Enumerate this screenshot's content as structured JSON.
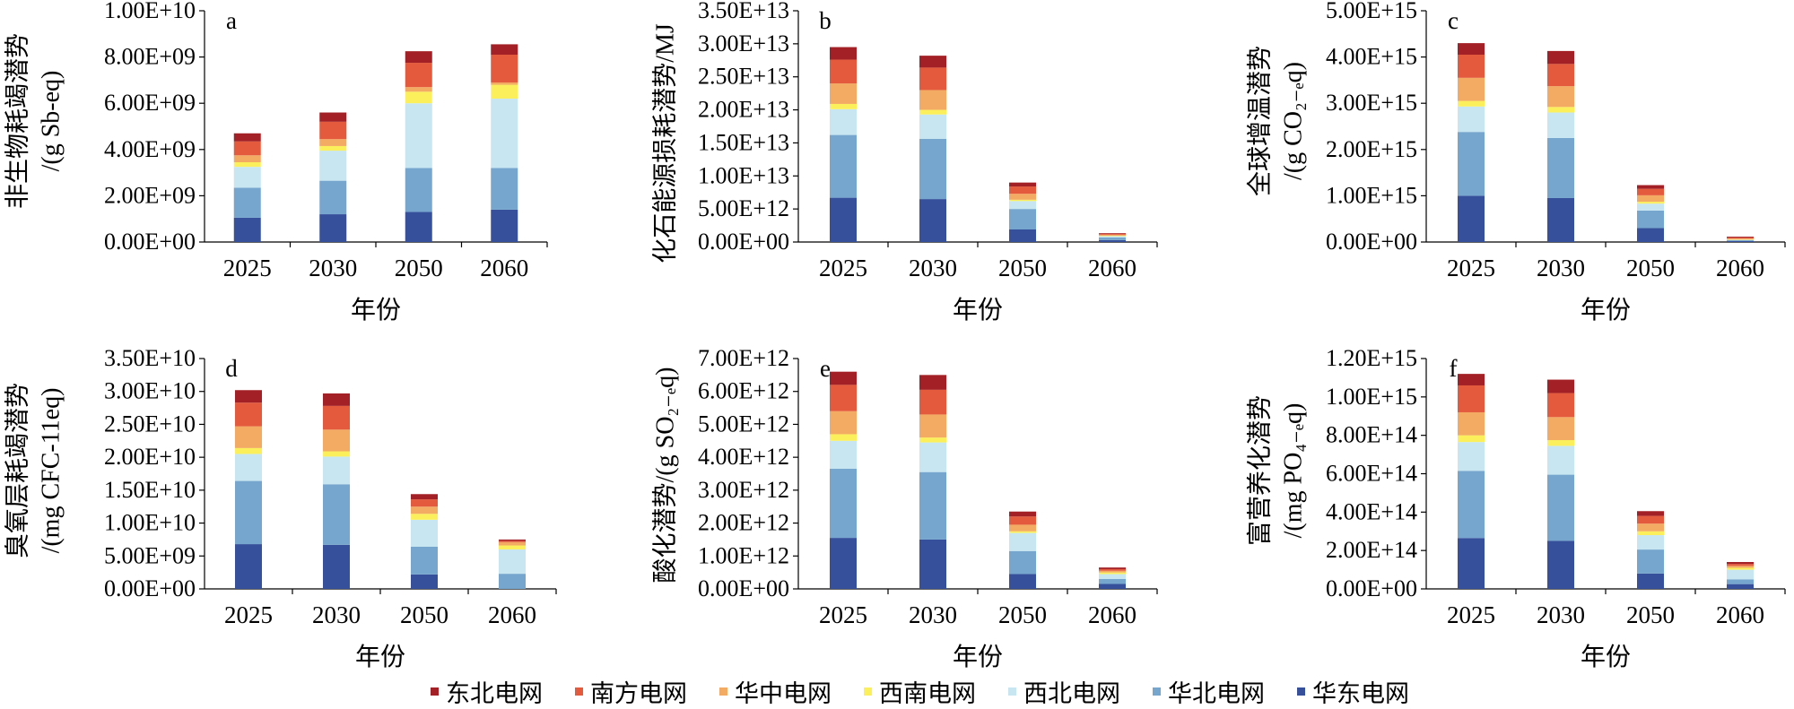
{
  "series_colors": [
    "#a32126",
    "#e45a3c",
    "#f3aa62",
    "#fbf05c",
    "#c8e6f2",
    "#76a6cd",
    "#37509c"
  ],
  "chart_data": [
    {
      "type": "bar",
      "stacked": true,
      "panel": "a",
      "ylabel_lines": [
        "非生物耗竭潜势",
        "/(g Sb-eq)"
      ],
      "xlabel": "年份",
      "categories": [
        "2025",
        "2030",
        "2050",
        "2060"
      ],
      "yticks": [
        "0.00E+00",
        "2.00E+09",
        "4.00E+09",
        "6.00E+09",
        "8.00E+09",
        "1.00E+10"
      ],
      "ylim": [
        0,
        10000000000.0
      ],
      "series": [
        {
          "name": "华东电网",
          "values": [
            1050000000.0,
            1200000000.0,
            1300000000.0,
            1400000000.0
          ]
        },
        {
          "name": "华北电网",
          "values": [
            1300000000.0,
            1450000000.0,
            1900000000.0,
            1800000000.0
          ]
        },
        {
          "name": "西北电网",
          "values": [
            900000000.0,
            1300000000.0,
            2800000000.0,
            3000000000.0
          ]
        },
        {
          "name": "西南电网",
          "values": [
            200000000.0,
            200000000.0,
            500000000.0,
            600000000.0
          ]
        },
        {
          "name": "华中电网",
          "values": [
            300000000.0,
            300000000.0,
            200000000.0,
            100000000.0
          ]
        },
        {
          "name": "南方电网",
          "values": [
            600000000.0,
            750000000.0,
            1050000000.0,
            1200000000.0
          ]
        },
        {
          "name": "东北电网",
          "values": [
            350000000.0,
            400000000.0,
            500000000.0,
            450000000.0
          ]
        }
      ]
    },
    {
      "type": "bar",
      "stacked": true,
      "panel": "b",
      "ylabel_lines": [
        "化石能源损耗潜势/MJ"
      ],
      "xlabel": "年份",
      "categories": [
        "2025",
        "2030",
        "2050",
        "2060"
      ],
      "yticks": [
        "0.00E+00",
        "5.00E+12",
        "1.00E+13",
        "1.50E+13",
        "2.00E+13",
        "2.50E+13",
        "3.00E+13",
        "3.50E+13"
      ],
      "ylim": [
        0,
        35000000000000.0
      ],
      "series": [
        {
          "name": "华东电网",
          "values": [
            6700000000000.0,
            6500000000000.0,
            1900000000000.0,
            300000000000.0
          ]
        },
        {
          "name": "华北电网",
          "values": [
            9500000000000.0,
            9100000000000.0,
            3100000000000.0,
            400000000000.0
          ]
        },
        {
          "name": "西北电网",
          "values": [
            3900000000000.0,
            3700000000000.0,
            1200000000000.0,
            200000000000.0
          ]
        },
        {
          "name": "西南电网",
          "values": [
            800000000000.0,
            700000000000.0,
            200000000000.0,
            50000000000.0
          ]
        },
        {
          "name": "华中电网",
          "values": [
            3100000000000.0,
            3000000000000.0,
            900000000000.0,
            150000000000.0
          ]
        },
        {
          "name": "南方电网",
          "values": [
            3600000000000.0,
            3400000000000.0,
            1100000000000.0,
            150000000000.0
          ]
        },
        {
          "name": "东北电网",
          "values": [
            1900000000000.0,
            1800000000000.0,
            600000000000.0,
            100000000000.0
          ]
        }
      ]
    },
    {
      "type": "bar",
      "stacked": true,
      "panel": "c",
      "ylabel_lines": [
        "全球增温潜势",
        "/(g CO₂₋ₑq)"
      ],
      "xlabel": "年份",
      "categories": [
        "2025",
        "2030",
        "2050",
        "2060"
      ],
      "yticks": [
        "0.00E+00",
        "1.00E+15",
        "2.00E+15",
        "3.00E+15",
        "4.00E+15",
        "5.00E+15"
      ],
      "ylim": [
        0,
        5000000000000000.0
      ],
      "series": [
        {
          "name": "华东电网",
          "values": [
            1000000000000000.0,
            950000000000000.0,
            300000000000000.0,
            20000000000000.0
          ]
        },
        {
          "name": "华北电网",
          "values": [
            1380000000000000.0,
            1300000000000000.0,
            380000000000000.0,
            20000000000000.0
          ]
        },
        {
          "name": "西北电网",
          "values": [
            550000000000000.0,
            550000000000000.0,
            150000000000000.0,
            10000000000000.0
          ]
        },
        {
          "name": "西南电网",
          "values": [
            120000000000000.0,
            120000000000000.0,
            40000000000000.0,
            5000000000000.0
          ]
        },
        {
          "name": "华中电网",
          "values": [
            500000000000000.0,
            450000000000000.0,
            140000000000000.0,
            20000000000000.0
          ]
        },
        {
          "name": "南方电网",
          "values": [
            500000000000000.0,
            480000000000000.0,
            140000000000000.0,
            20000000000000.0
          ]
        },
        {
          "name": "东北电网",
          "values": [
            250000000000000.0,
            280000000000000.0,
            80000000000000.0,
            20000000000000.0
          ]
        }
      ]
    },
    {
      "type": "bar",
      "stacked": true,
      "panel": "d",
      "ylabel_lines": [
        "臭氧层耗竭潜势",
        "/(mg CFC-11eq)"
      ],
      "xlabel": "年份",
      "categories": [
        "2025",
        "2030",
        "2050",
        "2060"
      ],
      "yticks": [
        "0.00E+00",
        "5.00E+09",
        "1.00E+10",
        "1.50E+10",
        "2.00E+10",
        "2.50E+10",
        "3.00E+10",
        "3.50E+10"
      ],
      "ylim": [
        0,
        35000000000.0
      ],
      "series": [
        {
          "name": "华东电网",
          "values": [
            6800000000.0,
            6700000000.0,
            2200000000.0,
            0.0
          ]
        },
        {
          "name": "华北电网",
          "values": [
            9600000000.0,
            9200000000.0,
            4200000000.0,
            2300000000.0
          ]
        },
        {
          "name": "西北电网",
          "values": [
            4100000000.0,
            4200000000.0,
            4100000000.0,
            3700000000.0
          ]
        },
        {
          "name": "西南电网",
          "values": [
            900000000.0,
            800000000.0,
            900000000.0,
            600000000.0
          ]
        },
        {
          "name": "华中电网",
          "values": [
            3300000000.0,
            3300000000.0,
            1100000000.0,
            500000000.0
          ]
        },
        {
          "name": "南方电网",
          "values": [
            3600000000.0,
            3600000000.0,
            1100000000.0,
            200000000.0
          ]
        },
        {
          "name": "东北电网",
          "values": [
            1900000000.0,
            1900000000.0,
            800000000.0,
            200000000.0
          ]
        }
      ]
    },
    {
      "type": "bar",
      "stacked": true,
      "panel": "e",
      "ylabel_lines": [
        "酸化潜势/(g SO₂₋ₑq)"
      ],
      "xlabel": "年份",
      "categories": [
        "2025",
        "2030",
        "2050",
        "2060"
      ],
      "yticks": [
        "0.00E+00",
        "1.00E+12",
        "2.00E+12",
        "3.00E+12",
        "4.00E+12",
        "5.00E+12",
        "6.00E+12",
        "7.00E+12"
      ],
      "ylim": [
        0,
        7000000000000.0
      ],
      "series": [
        {
          "name": "华东电网",
          "values": [
            1550000000000.0,
            1500000000000.0,
            450000000000.0,
            150000000000.0
          ]
        },
        {
          "name": "华北电网",
          "values": [
            2100000000000.0,
            2050000000000.0,
            700000000000.0,
            150000000000.0
          ]
        },
        {
          "name": "西北电网",
          "values": [
            850000000000.0,
            900000000000.0,
            550000000000.0,
            150000000000.0
          ]
        },
        {
          "name": "西南电网",
          "values": [
            200000000000.0,
            150000000000.0,
            50000000000.0,
            50000000000.0
          ]
        },
        {
          "name": "华中电网",
          "values": [
            700000000000.0,
            700000000000.0,
            200000000000.0,
            50000000000.0
          ]
        },
        {
          "name": "南方电网",
          "values": [
            800000000000.0,
            750000000000.0,
            250000000000.0,
            50000000000.0
          ]
        },
        {
          "name": "东北电网",
          "values": [
            400000000000.0,
            450000000000.0,
            150000000000.0,
            50000000000.0
          ]
        }
      ]
    },
    {
      "type": "bar",
      "stacked": true,
      "panel": "f",
      "ylabel_lines": [
        "富营养化潜势",
        "/(mg PO₄₋ₑq)"
      ],
      "xlabel": "年份",
      "categories": [
        "2025",
        "2030",
        "2050",
        "2060"
      ],
      "yticks": [
        "0.00E+00",
        "2.00E+14",
        "4.00E+14",
        "6.00E+14",
        "8.00E+14",
        "1.00E+15",
        "1.20E+15"
      ],
      "ylim": [
        0,
        1200000000000000.0
      ],
      "series": [
        {
          "name": "华东电网",
          "values": [
            265000000000000.0,
            250000000000000.0,
            80000000000000.0,
            25000000000000.0
          ]
        },
        {
          "name": "华北电网",
          "values": [
            350000000000000.0,
            345000000000000.0,
            125000000000000.0,
            25000000000000.0
          ]
        },
        {
          "name": "西北电网",
          "values": [
            150000000000000.0,
            150000000000000.0,
            75000000000000.0,
            50000000000000.0
          ]
        },
        {
          "name": "西南电网",
          "values": [
            35000000000000.0,
            30000000000000.0,
            20000000000000.0,
            10000000000000.0
          ]
        },
        {
          "name": "华中电网",
          "values": [
            120000000000000.0,
            120000000000000.0,
            40000000000000.0,
            10000000000000.0
          ]
        },
        {
          "name": "南方电网",
          "values": [
            140000000000000.0,
            125000000000000.0,
            40000000000000.0,
            10000000000000.0
          ]
        },
        {
          "name": "东北电网",
          "values": [
            60000000000000.0,
            70000000000000.0,
            25000000000000.0,
            10000000000000.0
          ]
        }
      ]
    }
  ],
  "legend": [
    {
      "name": "东北电网",
      "color": "#a32126"
    },
    {
      "name": "南方电网",
      "color": "#e45a3c"
    },
    {
      "name": "华中电网",
      "color": "#f3aa62"
    },
    {
      "name": "西南电网",
      "color": "#fbf05c"
    },
    {
      "name": "西北电网",
      "color": "#c8e6f2"
    },
    {
      "name": "华北电网",
      "color": "#76a6cd"
    },
    {
      "name": "华东电网",
      "color": "#37509c"
    }
  ]
}
